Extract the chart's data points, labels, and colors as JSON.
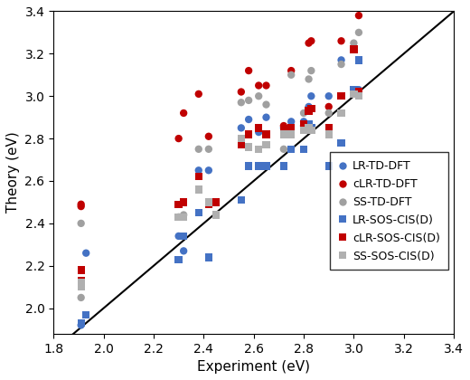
{
  "title": "",
  "xlabel": "Experiment (eV)",
  "ylabel": "Theory (eV)",
  "xlim": [
    1.8,
    3.4
  ],
  "ylim": [
    1.88,
    3.4
  ],
  "xticks": [
    1.8,
    2.0,
    2.2,
    2.4,
    2.6,
    2.8,
    3.0,
    3.2,
    3.4
  ],
  "yticks": [
    2.0,
    2.2,
    2.4,
    2.6,
    2.8,
    3.0,
    3.2,
    3.4
  ],
  "diagonal": [
    1.8,
    3.4
  ],
  "LR_TD_DFT": {
    "x": [
      1.91,
      1.93,
      2.3,
      2.32,
      2.38,
      2.42,
      2.55,
      2.58,
      2.62,
      2.65,
      2.72,
      2.75,
      2.8,
      2.82,
      2.83,
      2.9,
      2.95,
      3.0,
      3.02
    ],
    "y": [
      1.92,
      2.26,
      2.34,
      2.27,
      2.65,
      2.65,
      2.85,
      2.89,
      2.83,
      2.9,
      2.85,
      2.88,
      2.88,
      2.95,
      3.0,
      3.0,
      3.17,
      3.02,
      3.03
    ],
    "color": "#4472C4",
    "marker": "o",
    "label": "LR-TD-DFT"
  },
  "cLR_TD_DFT": {
    "x": [
      1.91,
      1.91,
      2.3,
      2.32,
      2.38,
      2.42,
      2.55,
      2.58,
      2.62,
      2.65,
      2.72,
      2.75,
      2.8,
      2.82,
      2.83,
      2.9,
      2.95,
      3.0,
      3.02
    ],
    "y": [
      2.48,
      2.49,
      2.8,
      2.92,
      3.01,
      2.81,
      3.02,
      3.12,
      3.05,
      3.05,
      2.86,
      3.12,
      2.86,
      3.25,
      3.26,
      2.95,
      3.26,
      3.23,
      3.38
    ],
    "color": "#C00000",
    "marker": "o",
    "label": "cLR-TD-DFT"
  },
  "SS_TD_DFT": {
    "x": [
      1.91,
      1.91,
      2.3,
      2.32,
      2.38,
      2.42,
      2.55,
      2.58,
      2.62,
      2.65,
      2.72,
      2.75,
      2.8,
      2.82,
      2.83,
      2.9,
      2.95,
      3.0,
      3.02
    ],
    "y": [
      2.05,
      2.4,
      2.43,
      2.44,
      2.75,
      2.75,
      2.97,
      2.98,
      3.0,
      2.96,
      2.75,
      3.1,
      2.92,
      3.08,
      3.12,
      2.92,
      3.15,
      3.25,
      3.3
    ],
    "color": "#A0A0A0",
    "marker": "o",
    "label": "SS-TD-DFT"
  },
  "LR_SOS_CISD": {
    "x": [
      1.91,
      1.93,
      2.3,
      2.32,
      2.38,
      2.42,
      2.45,
      2.55,
      2.58,
      2.62,
      2.65,
      2.72,
      2.75,
      2.8,
      2.82,
      2.83,
      2.9,
      2.95,
      3.0,
      3.02
    ],
    "y": [
      1.93,
      1.97,
      2.23,
      2.34,
      2.45,
      2.24,
      2.44,
      2.51,
      2.67,
      2.67,
      2.67,
      2.67,
      2.75,
      2.75,
      2.87,
      2.85,
      2.67,
      2.78,
      3.03,
      3.17
    ],
    "color": "#4472C4",
    "marker": "s",
    "label": "LR-SOS-CIS(D)"
  },
  "cLR_SOS_CISD": {
    "x": [
      1.91,
      1.91,
      2.3,
      2.32,
      2.38,
      2.42,
      2.45,
      2.55,
      2.58,
      2.62,
      2.65,
      2.72,
      2.75,
      2.8,
      2.82,
      2.83,
      2.9,
      2.95,
      3.0,
      3.02
    ],
    "y": [
      2.13,
      2.18,
      2.49,
      2.5,
      2.62,
      2.49,
      2.5,
      2.77,
      2.82,
      2.85,
      2.82,
      2.84,
      2.85,
      2.87,
      2.93,
      2.94,
      2.85,
      3.0,
      3.22,
      3.02
    ],
    "color": "#C00000",
    "marker": "s",
    "label": "cLR-SOS-CIS(D)"
  },
  "SS_SOS_CISD": {
    "x": [
      1.91,
      1.91,
      2.3,
      2.32,
      2.38,
      2.42,
      2.45,
      2.55,
      2.58,
      2.62,
      2.65,
      2.72,
      2.75,
      2.8,
      2.82,
      2.83,
      2.9,
      2.95,
      3.0,
      3.02
    ],
    "y": [
      2.1,
      2.12,
      2.43,
      2.43,
      2.56,
      2.5,
      2.44,
      2.8,
      2.76,
      2.75,
      2.77,
      2.82,
      2.82,
      2.84,
      2.85,
      2.84,
      2.82,
      2.92,
      3.01,
      3.0
    ],
    "color": "#B0B0B0",
    "marker": "s",
    "label": "SS-SOS-CIS(D)"
  },
  "markersize": 6,
  "fontsize_axis": 11,
  "fontsize_tick": 10,
  "fontsize_legend": 9
}
